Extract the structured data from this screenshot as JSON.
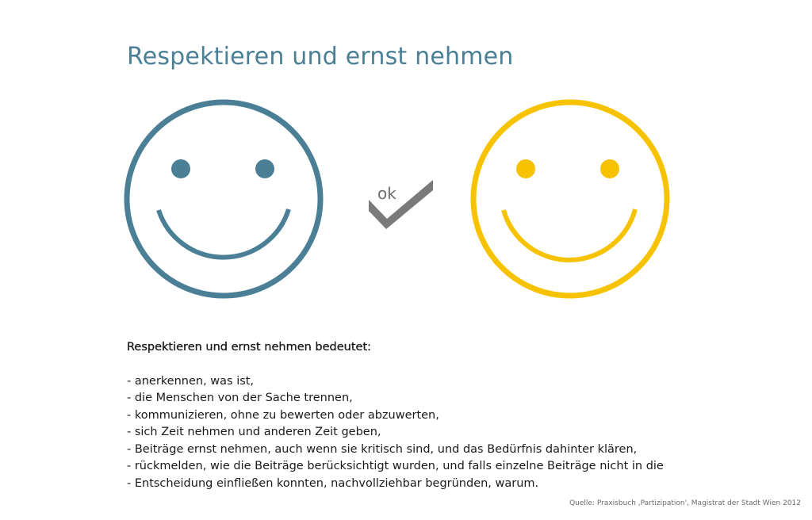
{
  "title": "Respektieren und ernst nehmen",
  "illustration": {
    "ok_label": "ok",
    "colors": {
      "left_face": "#4a7f96",
      "right_face": "#f7c300",
      "check": "#7a7a7a",
      "title": "#4a7f96"
    }
  },
  "body": {
    "heading": "Respektieren und ernst nehmen bedeutet:",
    "items": [
      "- anerkennen, was ist,",
      "- die Menschen von der Sache trennen,",
      "- kommunizieren, ohne zu bewerten oder abzuwerten,",
      "- sich Zeit nehmen und anderen Zeit geben,",
      "- Beiträge ernst nehmen, auch wenn sie kritisch sind, und das Bedürfnis dahinter klären,",
      "- rückmelden, wie die Beiträge berücksichtigt wurden, und falls einzelne Beiträge nicht in die",
      "- Entscheidung einfließen konnten, nachvollziehbar begründen, warum."
    ]
  },
  "source": "Quelle:  Praxisbuch ‚Partizipation', Magistrat der Stadt Wien 2012"
}
